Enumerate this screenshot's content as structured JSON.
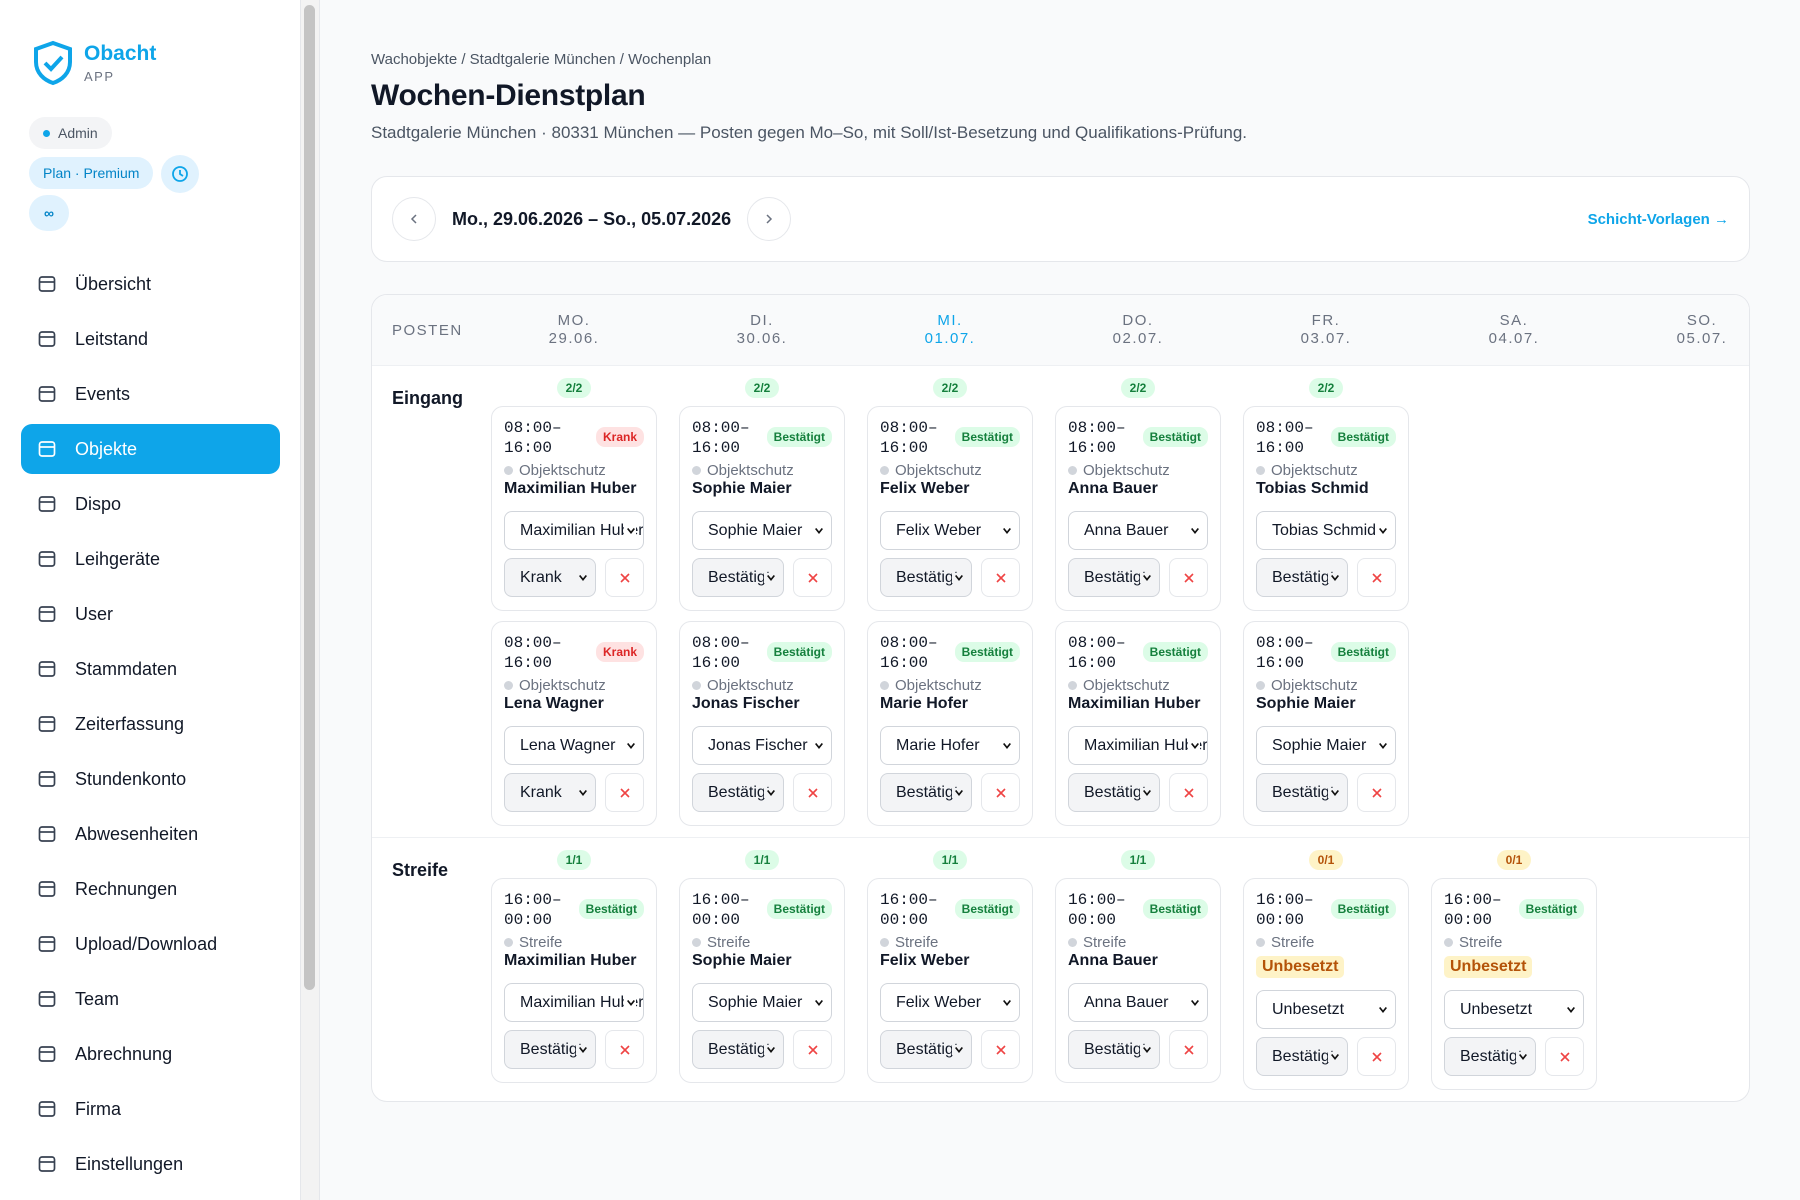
{
  "sidebar": {
    "brand": {
      "name": "Obacht",
      "sub": "APP"
    },
    "badges": {
      "role": "Admin",
      "plan": "Plan · Premium",
      "limit": "∞"
    },
    "nav": [
      {
        "label": "Übersicht"
      },
      {
        "label": "Leitstand"
      },
      {
        "label": "Events"
      },
      {
        "label": "Objekte",
        "active": true
      },
      {
        "label": "Dispo"
      },
      {
        "label": "Leihgeräte"
      },
      {
        "label": "User"
      },
      {
        "label": "Stammdaten"
      },
      {
        "label": "Zeiterfassung"
      },
      {
        "label": "Stundenkonto"
      },
      {
        "label": "Abwesenheiten"
      },
      {
        "label": "Rechnungen"
      },
      {
        "label": "Upload/Download"
      },
      {
        "label": "Team"
      },
      {
        "label": "Abrechnung"
      },
      {
        "label": "Firma"
      },
      {
        "label": "Einstellungen"
      }
    ]
  },
  "header": {
    "breadcrumb": [
      "Wachobjekte",
      "Stadtgalerie München",
      "Wochenplan"
    ],
    "title": "Wochen-Dienstplan",
    "subtitle": "Stadtgalerie München · 80331 München — Posten gegen Mo–So, mit Soll/Ist-Besetzung und Qualifikations-Prüfung."
  },
  "week": {
    "range": "Mo., 29.06.2026 – So., 05.07.2026",
    "link": "Schicht-Vorlagen →"
  },
  "schedule": {
    "posten_label": "POSTEN",
    "days": [
      {
        "name": "MO.",
        "date": "29.06."
      },
      {
        "name": "DI.",
        "date": "30.06."
      },
      {
        "name": "MI.",
        "date": "01.07.",
        "today": true
      },
      {
        "name": "DO.",
        "date": "02.07."
      },
      {
        "name": "FR.",
        "date": "03.07."
      },
      {
        "name": "SA.",
        "date": "04.07."
      },
      {
        "name": "SO.",
        "date": "05.07."
      }
    ],
    "posts": [
      {
        "name": "Eingang",
        "cells": [
          {
            "count": "2/2",
            "tone": "ok",
            "shifts": [
              {
                "time": "08:00–16:00",
                "status": "Krank",
                "tone": "bad",
                "type": "Objektschutz",
                "person": "Maximilian Huber"
              },
              {
                "time": "08:00–16:00",
                "status": "Krank",
                "tone": "bad",
                "type": "Objektschutz",
                "person": "Lena Wagner"
              }
            ]
          },
          {
            "count": "2/2",
            "tone": "ok",
            "shifts": [
              {
                "time": "08:00–16:00",
                "status": "Bestätigt",
                "tone": "ok",
                "type": "Objektschutz",
                "person": "Sophie Maier"
              },
              {
                "time": "08:00–16:00",
                "status": "Bestätigt",
                "tone": "ok",
                "type": "Objektschutz",
                "person": "Jonas Fischer"
              }
            ]
          },
          {
            "count": "2/2",
            "tone": "ok",
            "shifts": [
              {
                "time": "08:00–16:00",
                "status": "Bestätigt",
                "tone": "ok",
                "type": "Objektschutz",
                "person": "Felix Weber"
              },
              {
                "time": "08:00–16:00",
                "status": "Bestätigt",
                "tone": "ok",
                "type": "Objektschutz",
                "person": "Marie Hofer"
              }
            ]
          },
          {
            "count": "2/2",
            "tone": "ok",
            "shifts": [
              {
                "time": "08:00–16:00",
                "status": "Bestätigt",
                "tone": "ok",
                "type": "Objektschutz",
                "person": "Anna Bauer"
              },
              {
                "time": "08:00–16:00",
                "status": "Bestätigt",
                "tone": "ok",
                "type": "Objektschutz",
                "person": "Maximilian Huber"
              }
            ]
          },
          {
            "count": "2/2",
            "tone": "ok",
            "shifts": [
              {
                "time": "08:00–16:00",
                "status": "Bestätigt",
                "tone": "ok",
                "type": "Objektschutz",
                "person": "Tobias Schmid"
              },
              {
                "time": "08:00–16:00",
                "status": "Bestätigt",
                "tone": "ok",
                "type": "Objektschutz",
                "person": "Sophie Maier"
              }
            ]
          },
          null,
          null
        ]
      },
      {
        "name": "Streife",
        "cells": [
          {
            "count": "1/1",
            "tone": "ok",
            "shifts": [
              {
                "time": "16:00–00:00",
                "status": "Bestätigt",
                "tone": "ok",
                "type": "Streife",
                "person": "Maximilian Huber"
              }
            ]
          },
          {
            "count": "1/1",
            "tone": "ok",
            "shifts": [
              {
                "time": "16:00–00:00",
                "status": "Bestätigt",
                "tone": "ok",
                "type": "Streife",
                "person": "Sophie Maier"
              }
            ]
          },
          {
            "count": "1/1",
            "tone": "ok",
            "shifts": [
              {
                "time": "16:00–00:00",
                "status": "Bestätigt",
                "tone": "ok",
                "type": "Streife",
                "person": "Felix Weber"
              }
            ]
          },
          {
            "count": "1/1",
            "tone": "ok",
            "shifts": [
              {
                "time": "16:00–00:00",
                "status": "Bestätigt",
                "tone": "ok",
                "type": "Streife",
                "person": "Anna Bauer"
              }
            ]
          },
          {
            "count": "0/1",
            "tone": "warn",
            "shifts": [
              {
                "time": "16:00–00:00",
                "status": "Bestätigt",
                "tone": "ok",
                "type": "Streife",
                "person": "Unbesetzt",
                "assigned": false
              }
            ]
          },
          {
            "count": "0/1",
            "tone": "warn",
            "shifts": [
              {
                "time": "16:00–00:00",
                "status": "Bestätigt",
                "tone": "ok",
                "type": "Streife",
                "person": "Unbesetzt",
                "assigned": false
              }
            ]
          },
          null
        ]
      }
    ]
  }
}
